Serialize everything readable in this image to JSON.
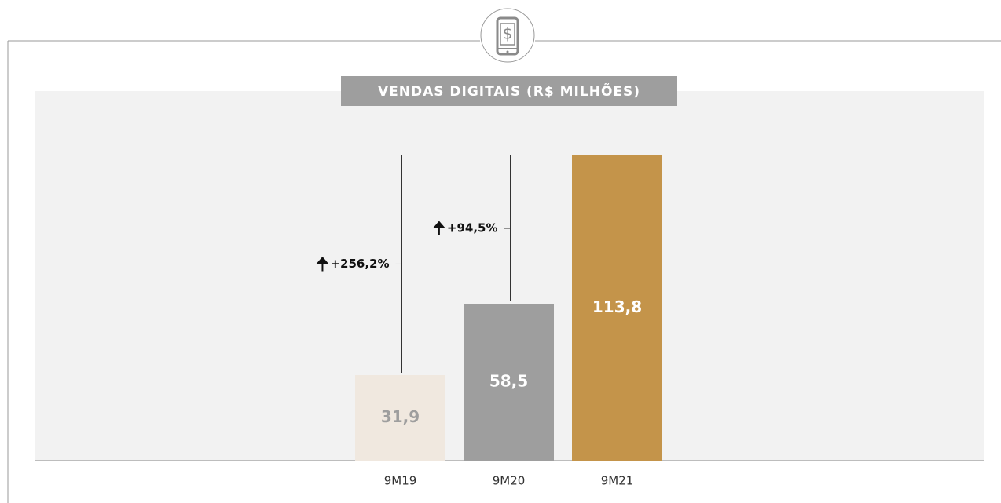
{
  "chart_data": {
    "type": "bar",
    "title": "VENDAS DIGITAIS (R$ MILHÕES)",
    "categories": [
      "9M19",
      "9M20",
      "9M21"
    ],
    "values": [
      31.9,
      58.5,
      113.8
    ],
    "value_labels": [
      "31,9",
      "58,5",
      "113,8"
    ],
    "colors": [
      "#f0e8df",
      "#9e9e9e",
      "#c4944a"
    ],
    "value_label_colors": [
      "#9e9e9e",
      "#ffffff",
      "#ffffff"
    ],
    "annotations": [
      "+256,2%",
      "+94,5%"
    ]
  }
}
